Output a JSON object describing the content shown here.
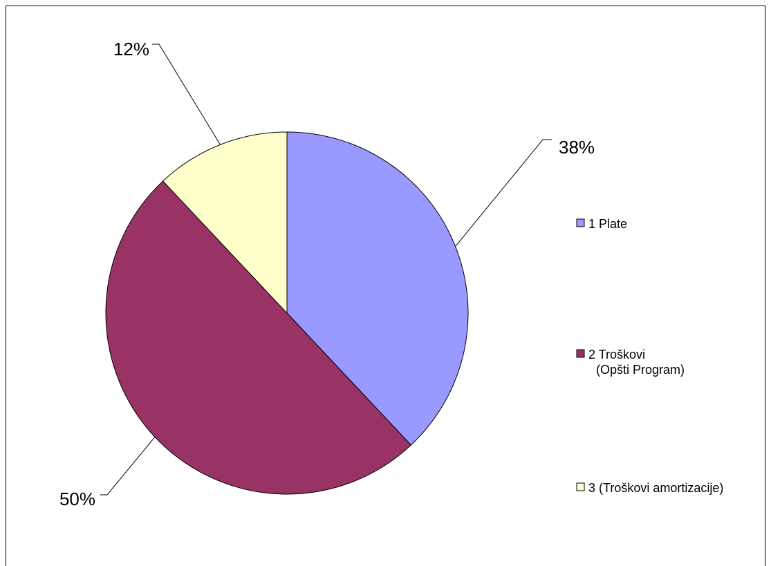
{
  "chart_data": {
    "type": "pie",
    "slices": [
      {
        "name": "1 Plate",
        "value": 38,
        "label": "38%",
        "color": "#9999ff"
      },
      {
        "name": "2 Troškovi (Opšti Program)",
        "value": 50,
        "label": "50%",
        "color": "#993366"
      },
      {
        "name": "3 (Troškovi amortizacije)",
        "value": 12,
        "label": "12%",
        "color": "#ffffcc"
      }
    ],
    "legend": {
      "placement": "right",
      "entries": [
        {
          "lines": [
            "1 Plate"
          ]
        },
        {
          "lines": [
            "2 Troškovi",
            "(Opšti Program)"
          ]
        },
        {
          "lines": [
            "3 (Troškovi amortizacije)"
          ]
        }
      ]
    }
  }
}
